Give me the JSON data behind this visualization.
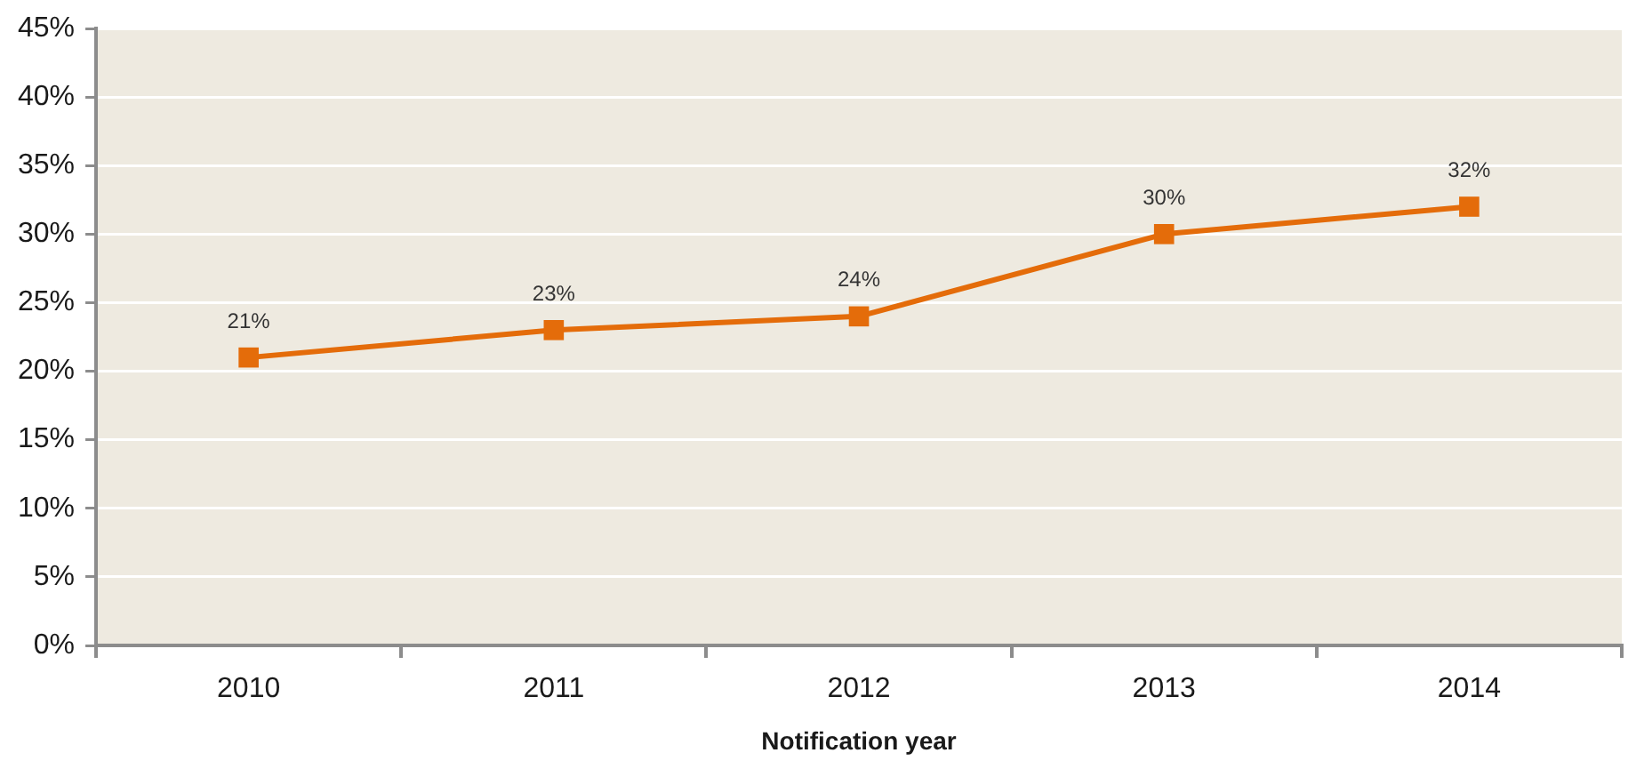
{
  "chart_data": {
    "type": "line",
    "xlabel": "Notification year",
    "categories": [
      "2010",
      "2011",
      "2012",
      "2013",
      "2014"
    ],
    "values": [
      21,
      23,
      24,
      30,
      32
    ],
    "color": "#e46c0a",
    "value_labels": [
      "21%",
      "23%",
      "24%",
      "30%",
      "32%"
    ],
    "ylim": [
      0,
      45
    ],
    "yticks": [
      {
        "value": 0,
        "label": "0%"
      },
      {
        "value": 5,
        "label": "5%"
      },
      {
        "value": 10,
        "label": "10%"
      },
      {
        "value": 15,
        "label": "15%"
      },
      {
        "value": 20,
        "label": "20%"
      },
      {
        "value": 25,
        "label": "25%"
      },
      {
        "value": 30,
        "label": "30%"
      },
      {
        "value": 35,
        "label": "35%"
      },
      {
        "value": 40,
        "label": "40%"
      },
      {
        "value": 45,
        "label": "45%"
      }
    ],
    "grid": "y",
    "marker": "square",
    "line_style": "solid"
  }
}
